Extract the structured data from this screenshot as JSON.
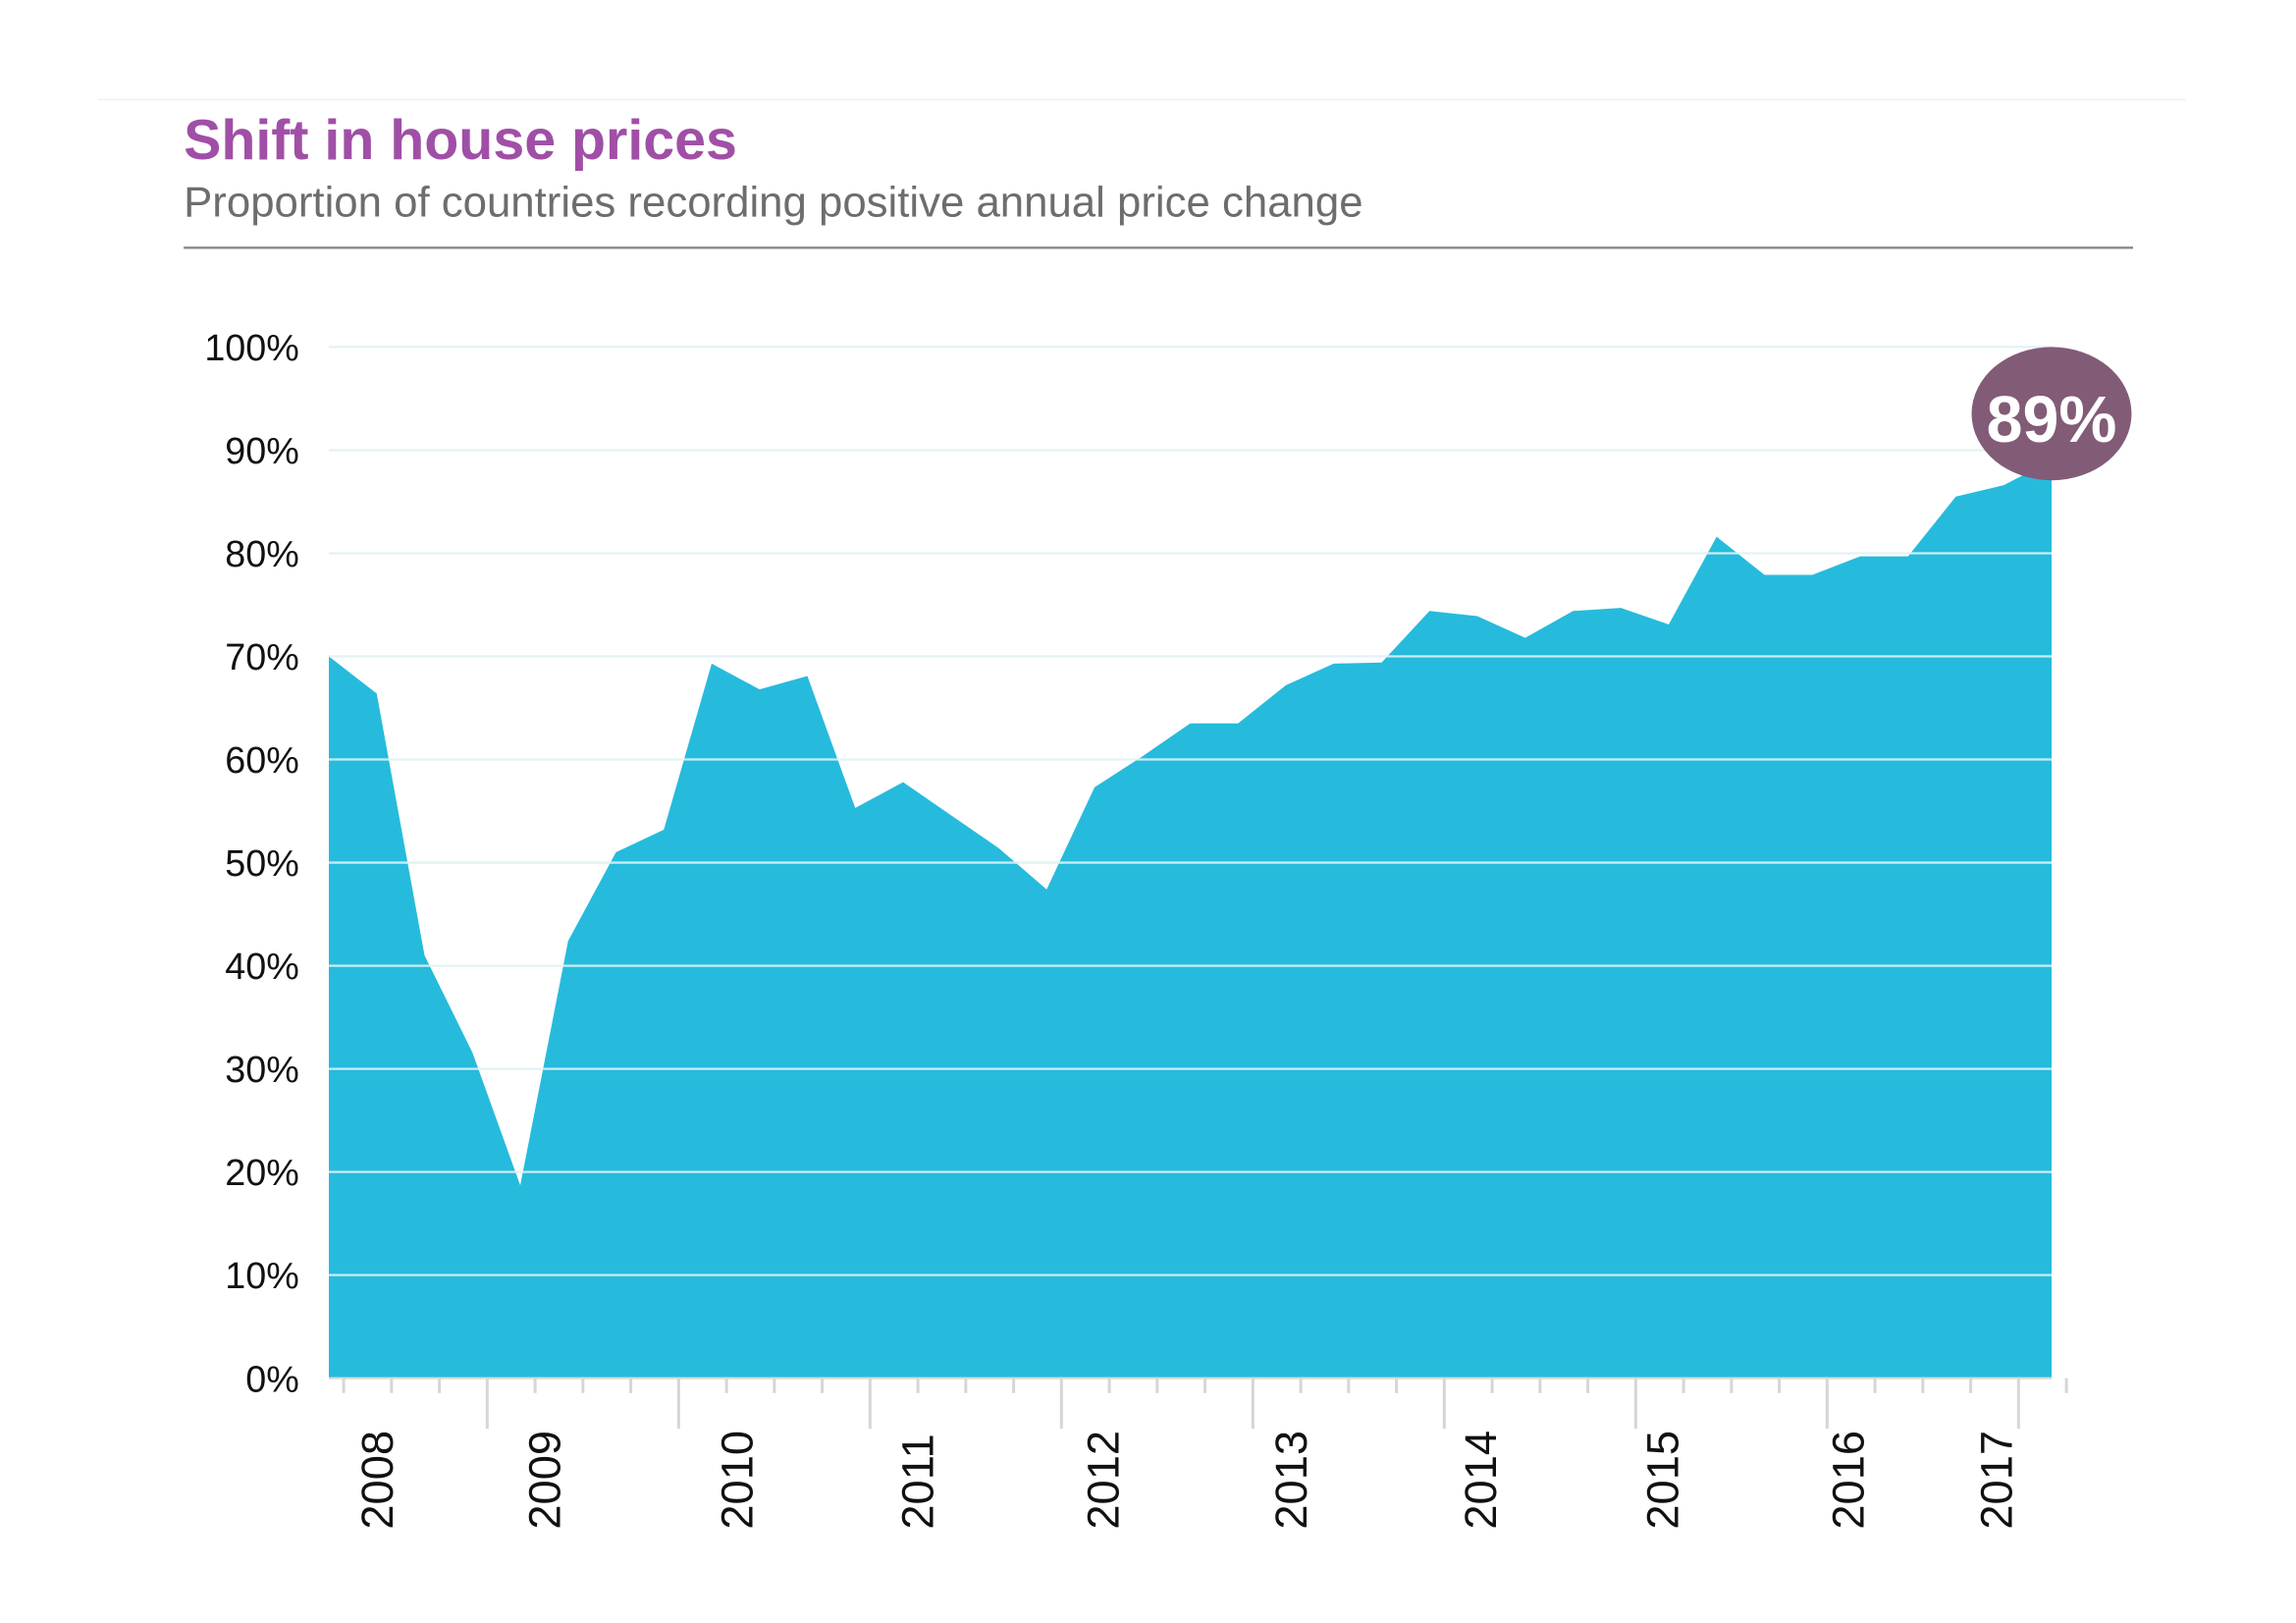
{
  "chart_data": {
    "type": "area",
    "title": "Shift in house prices",
    "subtitle": "Proportion of countries recording positive annual price change",
    "xlabel": "",
    "ylabel": "",
    "ylim": [
      0,
      100
    ],
    "y_ticks": [
      "0%",
      "10%",
      "20%",
      "30%",
      "40%",
      "50%",
      "60%",
      "70%",
      "80%",
      "90%",
      "100%"
    ],
    "x_tick_labels": [
      "2008",
      "2009",
      "2010",
      "2011",
      "2012",
      "2013",
      "2014",
      "2015",
      "2016",
      "2017"
    ],
    "grid": true,
    "values": [
      70,
      66.4,
      41,
      31.6,
      18.7,
      42.4,
      51,
      53.2,
      69.3,
      66.8,
      68.1,
      55.3,
      57.8,
      54.6,
      51.4,
      47.4,
      57.3,
      60.3,
      63.5,
      63.5,
      67.2,
      69.3,
      69.4,
      74.4,
      73.9,
      71.8,
      74.4,
      74.7,
      73.1,
      81.6,
      77.9,
      77.9,
      79.7,
      79.7,
      85.5,
      86.6,
      89
    ],
    "annotation": "89%",
    "colors": {
      "area": "#26bbdc",
      "title": "#a04fa6",
      "subtitle": "#6d6d6d",
      "badge": "#825b77",
      "grid": "#e4e4e4"
    }
  }
}
